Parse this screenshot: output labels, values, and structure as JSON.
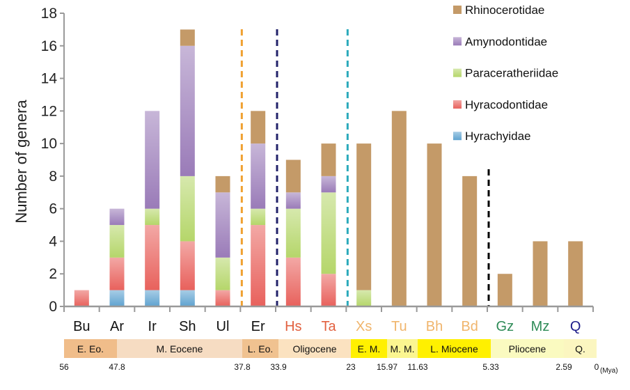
{
  "chart_data": {
    "type": "bar",
    "stacked": true,
    "ylabel": "Number of genera",
    "ylim": [
      0,
      18
    ],
    "yticks": [
      0,
      2,
      4,
      6,
      8,
      10,
      12,
      14,
      16,
      18
    ],
    "grid": false,
    "legend_placement": "top-right",
    "categories": [
      "Bu",
      "Ar",
      "Ir",
      "Sh",
      "Ul",
      "Er",
      "Hs",
      "Ta",
      "Xs",
      "Tu",
      "Bh",
      "Bd",
      "Gz",
      "Mz",
      "Q"
    ],
    "category_colors": [
      "#111111",
      "#111111",
      "#111111",
      "#111111",
      "#111111",
      "#111111",
      "#e2603f",
      "#e2603f",
      "#f0b56c",
      "#f0b56c",
      "#f0b56c",
      "#f0b56c",
      "#2e8b57",
      "#2e8b57",
      "#1c1c8a"
    ],
    "series": [
      {
        "name": "Hyrachyidae",
        "color": "#5fa3d0",
        "values": [
          0,
          1,
          1,
          1,
          0,
          0,
          0,
          0,
          0,
          0,
          0,
          0,
          0,
          0,
          0
        ]
      },
      {
        "name": "Hyracodontidae",
        "color": "#e8615c",
        "values": [
          1,
          2,
          4,
          3,
          1,
          5,
          3,
          2,
          0,
          0,
          0,
          0,
          0,
          0,
          0
        ]
      },
      {
        "name": "Paraceratheriidae",
        "color": "#b5d66a",
        "values": [
          0,
          2,
          1,
          4,
          2,
          1,
          3,
          5,
          1,
          0,
          0,
          0,
          0,
          0,
          0
        ]
      },
      {
        "name": "Amynodontidae",
        "color": "#9a7bb8",
        "values": [
          0,
          1,
          6,
          8,
          4,
          4,
          1,
          1,
          0,
          0,
          0,
          0,
          0,
          0,
          0
        ]
      },
      {
        "name": "Rhinocerotidae",
        "color": "#c49a68",
        "values": [
          0,
          0,
          0,
          1,
          1,
          2,
          2,
          2,
          9,
          12,
          10,
          8,
          2,
          4,
          4
        ]
      }
    ],
    "divider_lines": [
      {
        "after_category": "Ul",
        "color": "#f0a030"
      },
      {
        "after_category": "Er",
        "color": "#22226a"
      },
      {
        "after_category": "Ta",
        "color": "#2aaabb"
      },
      {
        "after_category": "Bd",
        "color": "#000000"
      }
    ],
    "timescale": {
      "periods": [
        {
          "label": "E. Eo.",
          "start": 56,
          "end": 47.8,
          "color": "#f0bd8a"
        },
        {
          "label": "M. Eocene",
          "start": 47.8,
          "end": 37.8,
          "color": "#f6dcc2"
        },
        {
          "label": "L. Eo.",
          "start": 37.8,
          "end": 33.9,
          "color": "#f0c290"
        },
        {
          "label": "Oligocene",
          "start": 33.9,
          "end": 23,
          "color": "#fbe2c0"
        },
        {
          "label": "E. M.",
          "start": 23,
          "end": 15.97,
          "color": "#fff000"
        },
        {
          "label": "M. M.",
          "start": 15.97,
          "end": 11.63,
          "color": "#fbf590"
        },
        {
          "label": "L. Miocene",
          "start": 11.63,
          "end": 5.33,
          "color": "#fff000"
        },
        {
          "label": "Pliocene",
          "start": 5.33,
          "end": 2.59,
          "color": "#fafac0"
        },
        {
          "label": "Q.",
          "start": 2.59,
          "end": 0,
          "color": "#fbf6c0"
        }
      ],
      "boundaries": [
        "56",
        "47.8",
        "37.8",
        "33.9",
        "23",
        "15.97",
        "11.63",
        "5.33",
        "2.59",
        "0"
      ],
      "unit": "(Mya)"
    }
  }
}
